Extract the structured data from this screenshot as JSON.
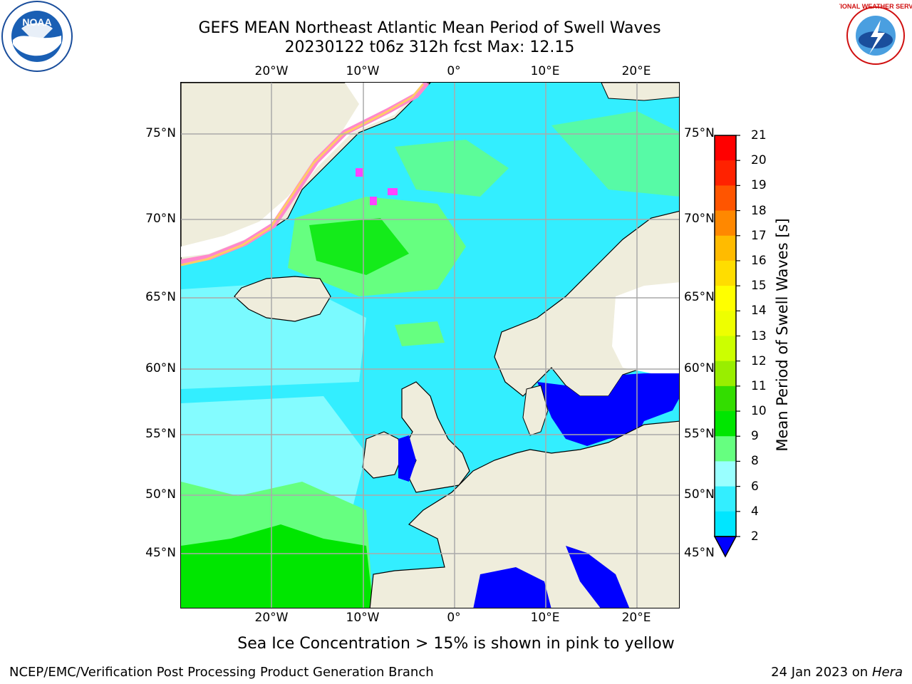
{
  "header": {
    "title_line1": "GEFS MEAN Northeast Atlantic Mean Period of Swell Waves",
    "title_line2": "20230122 t06z 312h fcst   Max: 12.15"
  },
  "logos": {
    "left": "NOAA",
    "right": "NATIONAL WEATHER SERVICE"
  },
  "map": {
    "lon_labels": [
      "20°W",
      "10°W",
      "0°",
      "10°E",
      "20°E"
    ],
    "lat_labels": [
      "75°N",
      "70°N",
      "65°N",
      "60°N",
      "55°N",
      "50°N",
      "45°N"
    ],
    "land_color": "#efeddc",
    "ice_colors": [
      "#ff44ff",
      "#ff88cc",
      "#ffcc66",
      "#ffee55"
    ]
  },
  "colorbar": {
    "label": "Mean Period of Swell Waves [s]",
    "ticks": [
      "21",
      "20",
      "19",
      "18",
      "17",
      "16",
      "15",
      "14",
      "13",
      "12",
      "11",
      "10",
      "9",
      "8",
      "6",
      "4",
      "2"
    ],
    "colors": [
      "#0000ff",
      "#0080ff",
      "#00e6ff",
      "#33eeff",
      "#99ffff",
      "#66ff80",
      "#00e600",
      "#33dd00",
      "#99ee00",
      "#ccff00",
      "#eeff00",
      "#ffff00",
      "#ffdd00",
      "#ffbb00",
      "#ff8800",
      "#ff5500",
      "#ff2200",
      "#ff0000"
    ]
  },
  "note": "Sea Ice Concentration > 15% is shown in pink to yellow",
  "footer": {
    "left": "NCEP/EMC/Verification Post Processing Product Generation Branch",
    "date": "24 Jan 2023 on ",
    "host": "Hera"
  }
}
